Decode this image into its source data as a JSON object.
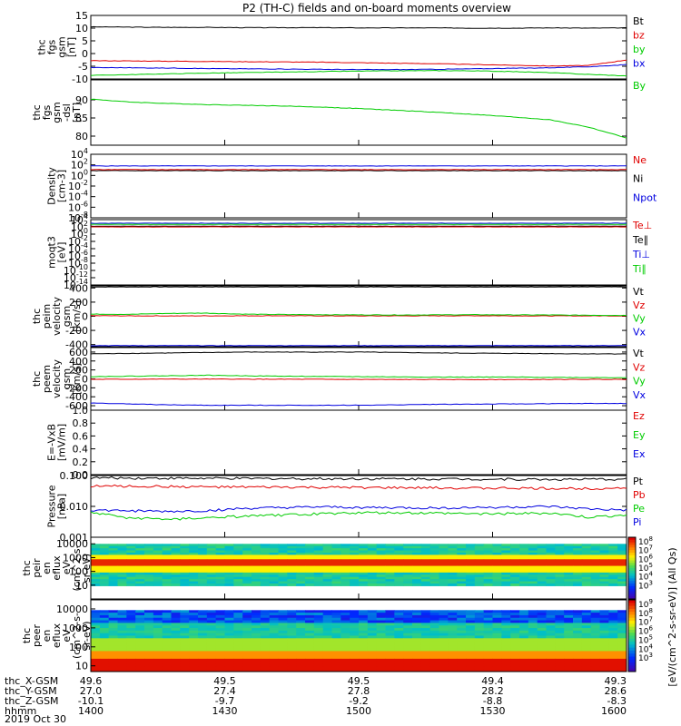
{
  "title": "P2 (TH-C) fields and on-board moments overview",
  "date_label": "2019 Oct 30",
  "colors": {
    "black": "#000000",
    "red": "#e00000",
    "green": "#00cc00",
    "blue": "#0000e0"
  },
  "chart_data": [
    {
      "id": "fgs",
      "type": "line",
      "ylabel": [
        "thc",
        "fgs",
        "gsm",
        "[nT]"
      ],
      "yticks": [
        "15",
        "10",
        "5",
        "0",
        "-5",
        "-10"
      ],
      "ylim": [
        -10,
        15
      ],
      "legend": [
        {
          "label": "Bt",
          "color": "#000000"
        },
        {
          "label": "bz",
          "color": "#e00000"
        },
        {
          "label": "by",
          "color": "#00cc00"
        },
        {
          "label": "bx",
          "color": "#0000e0"
        }
      ],
      "series": [
        {
          "name": "Bt",
          "color": "#000000",
          "values": [
            10.5,
            10.4,
            10.3,
            10.3,
            10.2,
            10.2,
            10.2,
            10.1,
            10.1,
            10.1,
            10.0,
            10.0,
            10.1,
            10.0,
            10.1
          ]
        },
        {
          "name": "bz",
          "color": "#e00000",
          "values": [
            -2.8,
            -2.9,
            -3.0,
            -3.1,
            -3.2,
            -3.3,
            -3.4,
            -3.6,
            -3.8,
            -4.0,
            -4.3,
            -4.6,
            -4.9,
            -4.7,
            -2.5
          ]
        },
        {
          "name": "by",
          "color": "#00cc00",
          "values": [
            -8.6,
            -8.3,
            -8.0,
            -7.7,
            -7.5,
            -7.3,
            -7.1,
            -6.9,
            -6.8,
            -6.7,
            -6.8,
            -7.1,
            -7.5,
            -8.2,
            -8.8
          ]
        },
        {
          "name": "bx",
          "color": "#0000e0",
          "values": [
            -5.5,
            -5.6,
            -5.7,
            -5.9,
            -6.0,
            -6.1,
            -6.2,
            -6.3,
            -6.3,
            -6.2,
            -6.0,
            -5.8,
            -5.6,
            -5.2,
            -4.4
          ]
        }
      ]
    },
    {
      "id": "fgs_dsl",
      "type": "line",
      "ylabel": [
        "thc",
        "fgs",
        "gsm",
        "-dsl",
        "[nT]"
      ],
      "yticks": [
        "90",
        "85",
        "80"
      ],
      "ylim": [
        77.5,
        95.5
      ],
      "legend": [
        {
          "label": "By",
          "color": "#00cc00"
        }
      ],
      "series": [
        {
          "name": "By",
          "color": "#00cc00",
          "values": [
            90.2,
            89.4,
            89.0,
            88.7,
            88.5,
            88.3,
            88.0,
            87.6,
            87.1,
            86.6,
            86.0,
            85.3,
            84.5,
            82.5,
            79.5
          ]
        }
      ]
    },
    {
      "id": "density",
      "type": "line",
      "ylabel": [
        "Density",
        "[cm-3]"
      ],
      "yticks_exp": [
        "4",
        "2",
        "0",
        "-2",
        "-4",
        "-6",
        "-8"
      ],
      "ylim": [
        -8,
        4
      ],
      "legend": [
        {
          "label": "Ne",
          "color": "#e00000"
        },
        {
          "label": "Ni",
          "color": "#000000"
        },
        {
          "label": "Npot",
          "color": "#0000e0"
        }
      ],
      "series": [
        {
          "name": "Npot",
          "color": "#0000e0",
          "values": [
            1.8,
            1.8,
            1.8,
            1.8,
            1.8,
            1.8,
            1.8,
            1.8,
            1.8,
            1.8,
            1.8,
            1.8,
            1.8,
            1.8,
            1.8
          ]
        },
        {
          "name": "Ni",
          "color": "#000000",
          "values": [
            0.9,
            0.9,
            0.9,
            0.9,
            0.9,
            0.9,
            0.9,
            0.9,
            0.9,
            0.9,
            0.9,
            0.9,
            0.9,
            0.9,
            0.9
          ]
        },
        {
          "name": "Ne",
          "color": "#e00000",
          "values": [
            1.1,
            1.1,
            1.1,
            1.1,
            1.1,
            1.1,
            1.1,
            1.1,
            1.1,
            1.1,
            1.1,
            1.1,
            1.1,
            1.1,
            1.1
          ]
        }
      ]
    },
    {
      "id": "moqt3",
      "type": "line",
      "ylabel": [
        "moqt3",
        "[eV]"
      ],
      "yticks_exp": [
        "4",
        "2",
        "0",
        "-2",
        "-4",
        "-6",
        "-8",
        "-10",
        "-12",
        "-14"
      ],
      "ylim": [
        -14,
        4
      ],
      "legend": [
        {
          "label": "Te⊥",
          "color": "#e00000"
        },
        {
          "label": "Te∥",
          "color": "#000000"
        },
        {
          "label": "Ti⊥",
          "color": "#0000e0"
        },
        {
          "label": "Ti∥",
          "color": "#00cc00"
        }
      ],
      "series": [
        {
          "name": "Ti⊥",
          "color": "#0000e0",
          "values": [
            3.0,
            3.0,
            3.0,
            3.0,
            3.0,
            3.0,
            3.0,
            3.0,
            3.0,
            3.0,
            3.0,
            3.0,
            3.0,
            3.0,
            3.0
          ]
        },
        {
          "name": "Ti∥",
          "color": "#00cc00",
          "values": [
            2.7,
            2.7,
            2.7,
            2.7,
            2.7,
            2.7,
            2.7,
            2.7,
            2.7,
            2.7,
            2.7,
            2.7,
            2.7,
            2.7,
            2.7
          ]
        },
        {
          "name": "Te∥",
          "color": "#000000",
          "values": [
            2.2,
            2.2,
            2.2,
            2.2,
            2.2,
            2.2,
            2.2,
            2.2,
            2.2,
            2.2,
            2.2,
            2.2,
            2.2,
            2.2,
            2.2
          ]
        },
        {
          "name": "Te⊥",
          "color": "#e00000",
          "values": [
            2.0,
            2.0,
            2.0,
            2.0,
            2.0,
            2.0,
            2.0,
            2.0,
            2.0,
            2.0,
            2.0,
            2.0,
            2.0,
            2.0,
            2.0
          ]
        }
      ]
    },
    {
      "id": "peim_velocity",
      "type": "line",
      "ylabel": [
        "thc",
        "peim",
        "velocity",
        "gsm",
        "[km/s]"
      ],
      "yticks": [
        "400",
        "200",
        "0",
        "-200",
        "-400"
      ],
      "ylim": [
        -430,
        430
      ],
      "legend": [
        {
          "label": "Vt",
          "color": "#000000"
        },
        {
          "label": "Vz",
          "color": "#e00000"
        },
        {
          "label": "Vy",
          "color": "#00cc00"
        },
        {
          "label": "Vx",
          "color": "#0000e0"
        }
      ],
      "series": [
        {
          "name": "Vt",
          "color": "#000000",
          "values": [
            415,
            415,
            415,
            415,
            415,
            415,
            415,
            415,
            415,
            415,
            415,
            415,
            415,
            415,
            415
          ]
        },
        {
          "name": "Vz",
          "color": "#e00000",
          "values": [
            8,
            6,
            5,
            6,
            7,
            8,
            6,
            5,
            6,
            7,
            8,
            6,
            5,
            6,
            7
          ]
        },
        {
          "name": "Vy",
          "color": "#00cc00",
          "values": [
            30,
            28,
            40,
            45,
            30,
            25,
            22,
            20,
            18,
            20,
            22,
            20,
            18,
            15,
            12
          ]
        },
        {
          "name": "Vx",
          "color": "#0000e0",
          "values": [
            -415,
            -415,
            -415,
            -415,
            -415,
            -415,
            -415,
            -415,
            -415,
            -415,
            -415,
            -415,
            -415,
            -415,
            -415
          ]
        }
      ]
    },
    {
      "id": "peem_velocity",
      "type": "line",
      "ylabel": [
        "thc",
        "peem",
        "velocity",
        "gsm",
        "[km/s]"
      ],
      "yticks": [
        "600",
        "400",
        "200",
        "0",
        "-200",
        "-400",
        "-600"
      ],
      "ylim": [
        -700,
        700
      ],
      "legend": [
        {
          "label": "Vt",
          "color": "#000000"
        },
        {
          "label": "Vz",
          "color": "#e00000"
        },
        {
          "label": "Vy",
          "color": "#00cc00"
        },
        {
          "label": "Vx",
          "color": "#0000e0"
        }
      ],
      "series": [
        {
          "name": "Vt",
          "color": "#000000",
          "values": [
            560,
            570,
            580,
            590,
            600,
            600,
            600,
            600,
            590,
            580,
            575,
            570,
            565,
            560,
            560
          ]
        },
        {
          "name": "Vz",
          "color": "#e00000",
          "values": [
            -10,
            -8,
            -5,
            -5,
            -6,
            -8,
            -10,
            -12,
            -14,
            -15,
            -15,
            -15,
            -14,
            -12,
            -10
          ]
        },
        {
          "name": "Vy",
          "color": "#00cc00",
          "values": [
            50,
            60,
            70,
            80,
            70,
            60,
            55,
            50,
            45,
            40,
            40,
            40,
            35,
            30,
            30
          ]
        },
        {
          "name": "Vx",
          "color": "#0000e0",
          "values": [
            -540,
            -560,
            -580,
            -590,
            -590,
            -590,
            -590,
            -590,
            -580,
            -570,
            -565,
            -560,
            -555,
            -550,
            -550
          ]
        }
      ]
    },
    {
      "id": "efield",
      "type": "line",
      "ylabel": [
        "E=-VxB",
        "[mV/m]"
      ],
      "yticks": [
        "1.0",
        "0.8",
        "0.6",
        "0.4",
        "0.2",
        "0.0"
      ],
      "ylim": [
        0,
        1
      ],
      "legend": [
        {
          "label": "Ez",
          "color": "#e00000"
        },
        {
          "label": "Ey",
          "color": "#00cc00"
        },
        {
          "label": "Ex",
          "color": "#0000e0"
        }
      ],
      "series": []
    },
    {
      "id": "pressure",
      "type": "line",
      "ylabel": [
        "Pressure",
        "[nPa]"
      ],
      "yticks": [
        "0.100",
        "0.010",
        "0.001"
      ],
      "ylim": [
        0.001,
        0.1
      ],
      "log": true,
      "legend": [
        {
          "label": "Pt",
          "color": "#000000"
        },
        {
          "label": "Pb",
          "color": "#e00000"
        },
        {
          "label": "Pe",
          "color": "#00cc00"
        },
        {
          "label": "Pi",
          "color": "#0000e0"
        }
      ],
      "series": [
        {
          "name": "Pt",
          "color": "#000000",
          "values": [
            0.085,
            0.083,
            0.082,
            0.081,
            0.08,
            0.08,
            0.079,
            0.079,
            0.078,
            0.078,
            0.077,
            0.076,
            0.075,
            0.075,
            0.076
          ]
        },
        {
          "name": "Pb",
          "color": "#e00000",
          "values": [
            0.046,
            0.045,
            0.044,
            0.043,
            0.042,
            0.042,
            0.041,
            0.041,
            0.04,
            0.04,
            0.039,
            0.039,
            0.038,
            0.038,
            0.04
          ]
        },
        {
          "name": "Pi",
          "color": "#0000e0",
          "values": [
            0.0075,
            0.0072,
            0.0068,
            0.0072,
            0.0085,
            0.009,
            0.0095,
            0.0092,
            0.009,
            0.0088,
            0.0092,
            0.0095,
            0.0098,
            0.0082,
            0.0075
          ]
        },
        {
          "name": "Pe",
          "color": "#00cc00",
          "values": [
            0.0062,
            0.0042,
            0.0038,
            0.0042,
            0.0048,
            0.0052,
            0.0058,
            0.0062,
            0.0062,
            0.006,
            0.0058,
            0.0058,
            0.006,
            0.0044,
            0.0052
          ]
        }
      ]
    },
    {
      "id": "peir_spec",
      "type": "heatmap",
      "ylabel": [
        "thc",
        "peir",
        "en",
        "eflux",
        "eV",
        "(cm^2-s-",
        "sr-eV)"
      ],
      "yticks": [
        "10000",
        "1000",
        "100",
        "10"
      ],
      "ylim": [
        1,
        30000
      ],
      "colorbar_label": "[eV/(cm^2-s-sr-eV)] (All Qs)",
      "colorbar_ticks_exp": [
        "8",
        "7",
        "6",
        "5",
        "4",
        "3"
      ]
    },
    {
      "id": "peer_spec",
      "type": "heatmap",
      "ylabel": [
        "thc",
        "peer",
        "en",
        "eflux",
        "eV",
        "(cm^2-s-",
        "sr-eV)"
      ],
      "yticks": [
        "10000",
        "1000",
        "100",
        "10"
      ],
      "ylim": [
        5,
        30000
      ],
      "colorbar_label": "[eV/(cm^2-s-sr-eV)] (All Qs)",
      "colorbar_ticks_exp": [
        "9",
        "8",
        "7",
        "6",
        "5",
        "4",
        "3"
      ]
    }
  ],
  "xaxis": {
    "row_labels": [
      "thc_X-GSM",
      "thc_Y-GSM",
      "thc_Z-GSM",
      "hhmm"
    ],
    "columns": [
      [
        "49.6",
        "27.0",
        "-10.1",
        "1400"
      ],
      [
        "49.5",
        "27.4",
        "-9.7",
        "1430"
      ],
      [
        "49.5",
        "27.8",
        "-9.2",
        "1500"
      ],
      [
        "49.4",
        "28.2",
        "-8.8",
        "1530"
      ],
      [
        "49.3",
        "28.6",
        "-8.3",
        "1600"
      ]
    ]
  }
}
